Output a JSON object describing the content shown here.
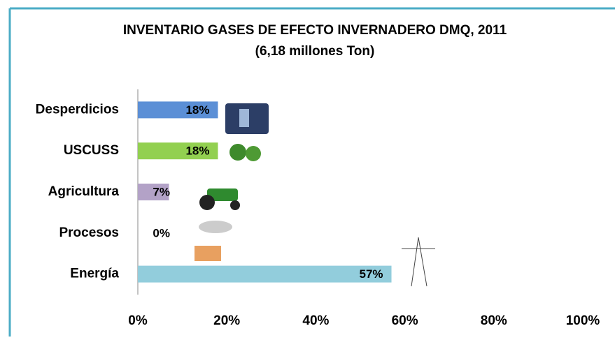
{
  "chart_data": {
    "type": "barh",
    "title": "INVENTARIO GASES DE EFECTO INVERNADERO DMQ, 2011",
    "subtitle": "(6,18 millones Ton)",
    "categories": [
      "Desperdicios",
      "USCUSS",
      "Agricultura",
      "Procesos",
      "Energía"
    ],
    "values": [
      18,
      18,
      7,
      0,
      57
    ],
    "value_labels": [
      "18%",
      "18%",
      "7%",
      "0%",
      "57%"
    ],
    "colors": [
      "#5b8fd6",
      "#92d050",
      "#b3a2c7",
      null,
      "#92cddc"
    ],
    "xlim": [
      0,
      100
    ],
    "xticks": [
      {
        "value": 0,
        "label": "0%"
      },
      {
        "value": 20,
        "label": "20%"
      },
      {
        "value": 40,
        "label": "40%"
      },
      {
        "value": 60,
        "label": "60%"
      },
      {
        "value": 80,
        "label": "80%"
      },
      {
        "value": 100,
        "label": "100%"
      }
    ],
    "grid": false
  }
}
